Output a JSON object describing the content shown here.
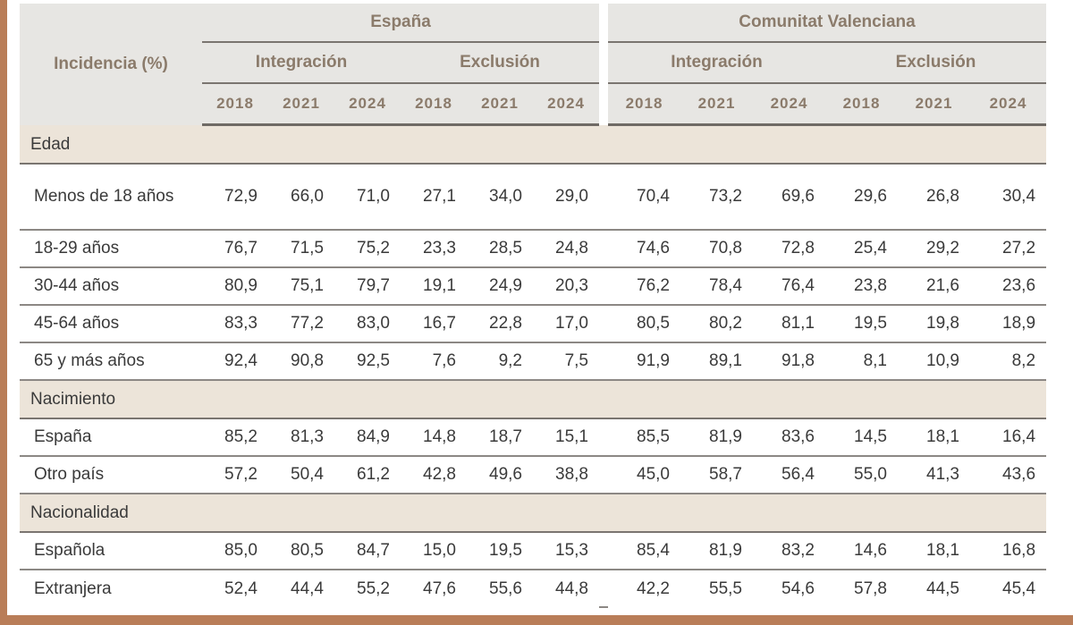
{
  "header": {
    "row_label": "Incidencia (%)",
    "groups": [
      {
        "label": "España",
        "subgroups": [
          "Integración",
          "Exclusión"
        ]
      },
      {
        "label": "Comunitat Valenciana",
        "subgroups": [
          "Integración",
          "Exclusión"
        ]
      }
    ],
    "years": [
      "2018",
      "2021",
      "2024"
    ]
  },
  "sections": [
    {
      "label": "Edad",
      "rows": [
        {
          "label": "Menos de 18 años",
          "values": [
            "72,9",
            "66,0",
            "71,0",
            "27,1",
            "34,0",
            "29,0",
            "70,4",
            "73,2",
            "69,6",
            "29,6",
            "26,8",
            "30,4"
          ]
        },
        {
          "label": "18-29 años",
          "values": [
            "76,7",
            "71,5",
            "75,2",
            "23,3",
            "28,5",
            "24,8",
            "74,6",
            "70,8",
            "72,8",
            "25,4",
            "29,2",
            "27,2"
          ]
        },
        {
          "label": "30-44 años",
          "values": [
            "80,9",
            "75,1",
            "79,7",
            "19,1",
            "24,9",
            "20,3",
            "76,2",
            "78,4",
            "76,4",
            "23,8",
            "21,6",
            "23,6"
          ]
        },
        {
          "label": "45-64 años",
          "values": [
            "83,3",
            "77,2",
            "83,0",
            "16,7",
            "22,8",
            "17,0",
            "80,5",
            "80,2",
            "81,1",
            "19,5",
            "19,8",
            "18,9"
          ]
        },
        {
          "label": "65 y más años",
          "values": [
            "92,4",
            "90,8",
            "92,5",
            "7,6",
            "9,2",
            "7,5",
            "91,9",
            "89,1",
            "91,8",
            "8,1",
            "10,9",
            "8,2"
          ]
        }
      ]
    },
    {
      "label": "Nacimiento",
      "rows": [
        {
          "label": "España",
          "values": [
            "85,2",
            "81,3",
            "84,9",
            "14,8",
            "18,7",
            "15,1",
            "85,5",
            "81,9",
            "83,6",
            "14,5",
            "18,1",
            "16,4"
          ]
        },
        {
          "label": "Otro país",
          "values": [
            "57,2",
            "50,4",
            "61,2",
            "42,8",
            "49,6",
            "38,8",
            "45,0",
            "58,7",
            "56,4",
            "55,0",
            "41,3",
            "43,6"
          ]
        }
      ]
    },
    {
      "label": "Nacionalidad",
      "rows": [
        {
          "label": "Española",
          "values": [
            "85,0",
            "80,5",
            "84,7",
            "15,0",
            "19,5",
            "15,3",
            "85,4",
            "81,9",
            "83,2",
            "14,6",
            "18,1",
            "16,8"
          ]
        },
        {
          "label": "Extranjera",
          "values": [
            "52,4",
            "44,4",
            "55,2",
            "47,6",
            "55,6",
            "44,8",
            "42,2",
            "55,5",
            "54,6",
            "57,8",
            "44,5",
            "45,4"
          ]
        }
      ]
    }
  ],
  "colors": {
    "frame": "#b97d58",
    "header_bg": "#e7e6e3",
    "header_text": "#8b7b6b",
    "section_bg": "#ece4d9"
  }
}
